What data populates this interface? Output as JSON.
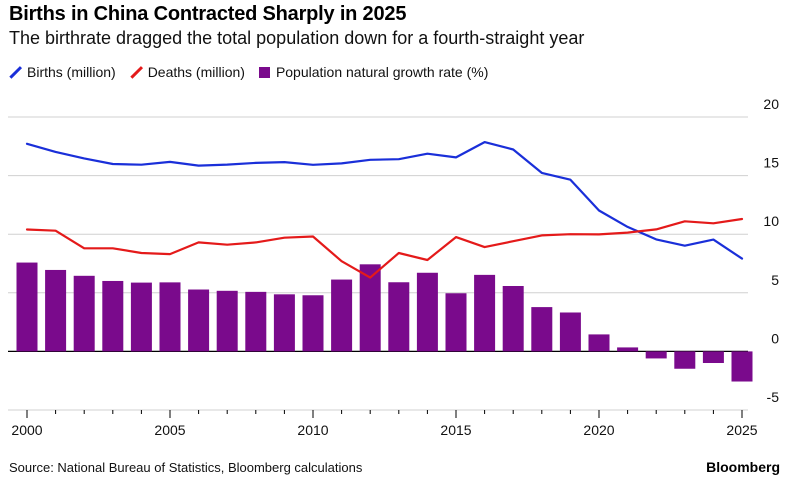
{
  "header": {
    "title": "Births in China Contracted Sharply in 2025",
    "subtitle": "The birthrate dragged the total population down for a fourth-straight year"
  },
  "legend": [
    {
      "label": "Births (million)",
      "color": "#1a2fd9",
      "kind": "line"
    },
    {
      "label": "Deaths (million)",
      "color": "#e41a1a",
      "kind": "line"
    },
    {
      "label": "Population natural growth rate (%)",
      "color": "#7a0a8c",
      "kind": "bar"
    }
  ],
  "footer": {
    "source": "Source: National Bureau of Statistics, Bloomberg calculations",
    "brand": "Bloomberg"
  },
  "chart_data": {
    "type": "bar+line",
    "x": [
      2000,
      2001,
      2002,
      2003,
      2004,
      2005,
      2006,
      2007,
      2008,
      2009,
      2010,
      2011,
      2012,
      2013,
      2014,
      2015,
      2016,
      2017,
      2018,
      2019,
      2020,
      2021,
      2022,
      2023,
      2024,
      2025
    ],
    "x_ticks": [
      2000,
      2005,
      2010,
      2015,
      2020,
      2025
    ],
    "y_ticks": [
      20,
      15,
      10,
      5,
      0,
      -5
    ],
    "ylim": [
      -5,
      20
    ],
    "grid": true,
    "series": [
      {
        "name": "Births (million)",
        "kind": "line",
        "color": "#1a2fd9",
        "values": [
          17.71,
          17.02,
          16.47,
          15.99,
          15.93,
          16.17,
          15.85,
          15.94,
          16.08,
          16.15,
          15.92,
          16.04,
          16.35,
          16.4,
          16.87,
          16.55,
          17.86,
          17.23,
          15.23,
          14.65,
          12.02,
          10.62,
          9.56,
          9.02,
          9.54,
          7.92
        ]
      },
      {
        "name": "Deaths (million)",
        "kind": "line",
        "color": "#e41a1a",
        "values": [
          10.4,
          10.3,
          8.8,
          8.8,
          8.4,
          8.3,
          9.3,
          9.1,
          9.3,
          9.7,
          9.8,
          7.7,
          6.3,
          8.4,
          7.8,
          9.75,
          8.9,
          9.4,
          9.9,
          10.0,
          9.98,
          10.14,
          10.41,
          11.1,
          10.93,
          11.3
        ]
      },
      {
        "name": "Population natural growth rate (%)",
        "kind": "bar",
        "color": "#7a0a8c",
        "values": [
          7.58,
          6.95,
          6.45,
          6.01,
          5.87,
          5.89,
          5.28,
          5.17,
          5.08,
          4.87,
          4.79,
          6.13,
          7.43,
          5.9,
          6.71,
          4.96,
          6.53,
          5.58,
          3.78,
          3.32,
          1.45,
          0.34,
          -0.6,
          -1.48,
          -0.99,
          -2.57
        ]
      }
    ]
  }
}
